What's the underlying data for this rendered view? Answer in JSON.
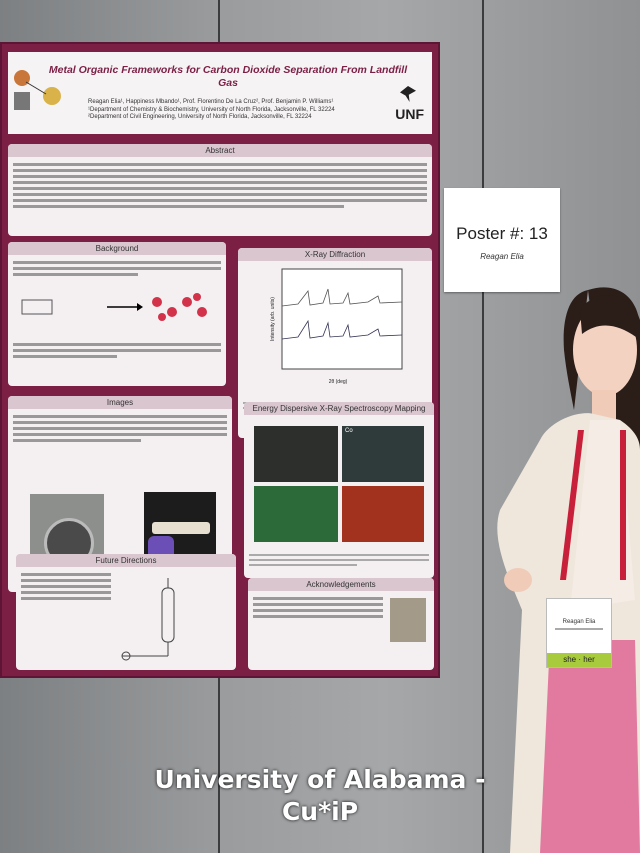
{
  "poster": {
    "title": "Metal Organic Frameworks for Carbon Dioxide Separation From Landfill Gas",
    "authors": "Reagan Elia¹, Happiness Mbando¹, Prof. Florentino De La Cruz², Prof. Benjamin P. Williams¹",
    "affil1": "¹Department of Chemistry & Biochemistry, University of North Florida, Jacksonville, FL 32224",
    "affil2": "²Department of Civil Engineering, University of North Florida, Jacksonville, FL 32224",
    "logo": "UNF",
    "sections": {
      "abstract": "Abstract",
      "background": "Background",
      "xrd": "X-Ray Diffraction",
      "images": "Images",
      "edx": "Energy Dispersive X-Ray Spectroscopy Mapping",
      "future": "Future Directions",
      "ack": "Acknowledgements"
    },
    "xrd_axis": {
      "x": "2θ (deg)",
      "y": "Intensity (arb. units)"
    },
    "edx_labels": [
      "Co"
    ]
  },
  "note": {
    "number": "Poster #: 13",
    "name": "Reagan Elia"
  },
  "badge": {
    "name": "Reagan Elia",
    "pronoun": "she · her"
  },
  "caption": {
    "line1": "University of Alabama -",
    "line2": "Cu*iP"
  },
  "colors": {
    "poster": "#7b1f45",
    "panel": "#f4f0f2",
    "badge_green": "#a7cb3d",
    "blazer": "#efe6dc",
    "pants": "#e27aa0"
  }
}
